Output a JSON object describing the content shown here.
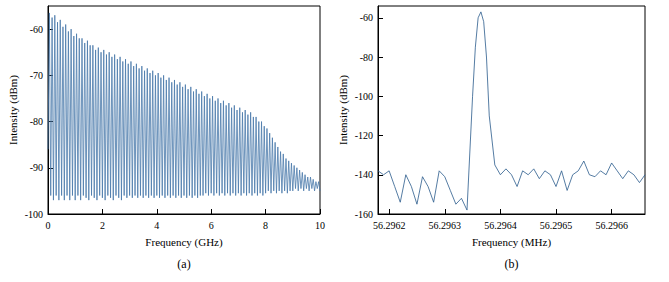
{
  "chart_data": [
    {
      "type": "line",
      "caption": "(a)",
      "x_label": "Frequency (GHz)",
      "y_label": "Intensity (dBm)",
      "color": "#4a7aab",
      "grid": false,
      "xlim": [
        0,
        10
      ],
      "ylim": [
        -100,
        -55
      ],
      "xticks": [
        0,
        2,
        4,
        6,
        8,
        10
      ],
      "yticks": [
        -100,
        -90,
        -80,
        -70,
        -60
      ],
      "x": [
        0,
        0.05,
        0.1,
        0.15,
        0.2,
        0.25,
        0.3,
        0.35,
        0.4,
        0.45,
        0.5,
        0.55,
        0.6,
        0.65,
        0.7,
        0.75,
        0.8,
        0.85,
        0.9,
        0.95,
        1,
        1.05,
        1.1,
        1.15,
        1.2,
        1.25,
        1.3,
        1.35,
        1.4,
        1.45,
        1.5,
        1.55,
        1.6,
        1.65,
        1.7,
        1.75,
        1.8,
        1.85,
        1.9,
        1.95,
        2,
        2.05,
        2.1,
        2.15,
        2.2,
        2.25,
        2.3,
        2.35,
        2.4,
        2.45,
        2.5,
        2.55,
        2.6,
        2.65,
        2.7,
        2.75,
        2.8,
        2.85,
        2.9,
        2.95,
        3,
        3.05,
        3.1,
        3.15,
        3.2,
        3.25,
        3.3,
        3.35,
        3.4,
        3.45,
        3.5,
        3.55,
        3.6,
        3.65,
        3.7,
        3.75,
        3.8,
        3.85,
        3.9,
        3.95,
        4,
        4.05,
        4.1,
        4.15,
        4.2,
        4.25,
        4.3,
        4.35,
        4.4,
        4.45,
        4.5,
        4.55,
        4.6,
        4.65,
        4.7,
        4.75,
        4.8,
        4.85,
        4.9,
        4.95,
        5,
        5.05,
        5.1,
        5.15,
        5.2,
        5.25,
        5.3,
        5.35,
        5.4,
        5.45,
        5.5,
        5.55,
        5.6,
        5.65,
        5.7,
        5.75,
        5.8,
        5.85,
        5.9,
        5.95,
        6,
        6.05,
        6.1,
        6.15,
        6.2,
        6.25,
        6.3,
        6.35,
        6.4,
        6.45,
        6.5,
        6.55,
        6.6,
        6.65,
        6.7,
        6.75,
        6.8,
        6.85,
        6.9,
        6.95,
        7,
        7.05,
        7.1,
        7.15,
        7.2,
        7.25,
        7.3,
        7.35,
        7.4,
        7.45,
        7.5,
        7.55,
        7.6,
        7.65,
        7.7,
        7.75,
        7.8,
        7.85,
        7.9,
        7.95,
        8,
        8.05,
        8.1,
        8.15,
        8.2,
        8.25,
        8.3,
        8.35,
        8.4,
        8.45,
        8.5,
        8.55,
        8.6,
        8.65,
        8.7,
        8.75,
        8.8,
        8.85,
        8.9,
        8.95,
        9,
        9.05,
        9.1,
        9.15,
        9.2,
        9.25,
        9.3,
        9.35,
        9.4,
        9.45,
        9.5,
        9.55,
        9.6,
        9.65,
        9.7,
        9.75,
        9.8,
        9.85,
        9.9,
        9.95,
        10
      ],
      "values": [
        -86,
        -56.5,
        -96,
        -57.5,
        -97,
        -57,
        -96,
        -58.5,
        -97,
        -58,
        -96,
        -59.5,
        -97,
        -59,
        -96,
        -60.5,
        -97,
        -60,
        -96,
        -61.5,
        -97,
        -61,
        -96,
        -62,
        -97,
        -62,
        -96,
        -63,
        -96.5,
        -62.5,
        -97,
        -63.5,
        -96,
        -63.5,
        -96.5,
        -64.5,
        -97,
        -64,
        -96,
        -65,
        -96.5,
        -64.5,
        -97,
        -65.5,
        -96,
        -65,
        -96.5,
        -66,
        -97,
        -65.5,
        -96,
        -66.5,
        -96.5,
        -66,
        -97,
        -67,
        -96,
        -66.5,
        -96.5,
        -67.5,
        -96,
        -67,
        -96.5,
        -68,
        -96,
        -67.5,
        -96.5,
        -68.5,
        -96,
        -68,
        -96.5,
        -69,
        -96,
        -68.5,
        -96.5,
        -69.5,
        -96,
        -69,
        -96.5,
        -70,
        -96,
        -69.5,
        -96.5,
        -70.5,
        -96,
        -70,
        -96.5,
        -71,
        -96,
        -70.5,
        -96.5,
        -71.5,
        -96,
        -71,
        -96.5,
        -72,
        -96,
        -71.5,
        -96.5,
        -72.5,
        -96,
        -72,
        -96.5,
        -73,
        -96,
        -72.5,
        -96.5,
        -73.5,
        -96,
        -73,
        -96.5,
        -74,
        -96,
        -73.5,
        -96,
        -74.5,
        -95.5,
        -74,
        -96,
        -75,
        -95.5,
        -74.5,
        -96,
        -75.5,
        -95.5,
        -75,
        -96,
        -76,
        -95.5,
        -75.5,
        -96,
        -76.5,
        -95.5,
        -76,
        -96,
        -77,
        -95.5,
        -76.5,
        -96,
        -77.5,
        -95.5,
        -77,
        -96,
        -78,
        -95.5,
        -77.5,
        -96,
        -78.5,
        -95.5,
        -78,
        -96,
        -79,
        -95.5,
        -79,
        -96,
        -80,
        -95.5,
        -80,
        -96,
        -81,
        -95.5,
        -81.5,
        -95,
        -82.5,
        -95.5,
        -83.5,
        -95,
        -84.5,
        -95.5,
        -85.5,
        -95,
        -86.5,
        -95.5,
        -87,
        -95,
        -88,
        -95.5,
        -88.5,
        -95,
        -89,
        -95,
        -89.5,
        -94.5,
        -90,
        -95,
        -90.5,
        -94.5,
        -91,
        -95,
        -91.5,
        -94.5,
        -92,
        -95,
        -92,
        -94.5,
        -92.5,
        -95,
        -93,
        -94.5,
        -93,
        -95
      ]
    },
    {
      "type": "line",
      "caption": "(b)",
      "x_label": "Frequency (MHz)",
      "y_label": "Intensity (dBm)",
      "color": "#2a5a8c",
      "grid": false,
      "xlim": [
        56.29618,
        56.29666
      ],
      "ylim": [
        -160,
        -54
      ],
      "xticks": [
        56.2962,
        56.2963,
        56.2964,
        56.2965,
        56.2966
      ],
      "yticks": [
        -160,
        -140,
        -120,
        -100,
        -80,
        -60
      ],
      "x": [
        56.29618,
        56.29619,
        56.2962,
        56.29621,
        56.29622,
        56.29623,
        56.29624,
        56.29625,
        56.29626,
        56.29627,
        56.29628,
        56.29629,
        56.2963,
        56.29631,
        56.29632,
        56.29633,
        56.29634,
        56.29635,
        56.296355,
        56.29636,
        56.296365,
        56.29637,
        56.296375,
        56.29638,
        56.29639,
        56.2964,
        56.29641,
        56.29642,
        56.29643,
        56.29644,
        56.29645,
        56.29646,
        56.29647,
        56.29648,
        56.29649,
        56.2965,
        56.29651,
        56.29652,
        56.29653,
        56.29654,
        56.29655,
        56.29656,
        56.29657,
        56.29658,
        56.29659,
        56.2966,
        56.29661,
        56.29662,
        56.29663,
        56.29664,
        56.29665,
        56.29666
      ],
      "values": [
        -138,
        -140,
        -138,
        -146,
        -154,
        -140,
        -146,
        -155,
        -141,
        -146,
        -154,
        -138,
        -141,
        -148,
        -155,
        -152,
        -158,
        -100,
        -75,
        -60,
        -57,
        -62,
        -80,
        -110,
        -135,
        -140,
        -137,
        -140,
        -146,
        -138,
        -140,
        -137,
        -142,
        -138,
        -140,
        -146,
        -138,
        -148,
        -140,
        -138,
        -133,
        -140,
        -141,
        -138,
        -140,
        -134,
        -138,
        -142,
        -138,
        -140,
        -144,
        -140
      ]
    }
  ]
}
